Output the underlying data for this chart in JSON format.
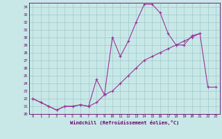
{
  "xlabel": "Windchill (Refroidissement éolien,°C)",
  "background_color": "#c8e8e8",
  "grid_color": "#a0c8c8",
  "line_color": "#993399",
  "spine_color": "#660066",
  "x": [
    0,
    1,
    2,
    3,
    4,
    5,
    6,
    7,
    8,
    9,
    10,
    11,
    12,
    13,
    14,
    15,
    16,
    17,
    18,
    19,
    20,
    21,
    22,
    23
  ],
  "line1": [
    22.0,
    21.5,
    21.0,
    20.5,
    21.0,
    21.0,
    21.2,
    21.0,
    24.5,
    22.5,
    30.0,
    27.5,
    29.5,
    32.0,
    34.3,
    34.3,
    33.2,
    30.5,
    29.0,
    29.0,
    30.2,
    30.5,
    null,
    null
  ],
  "line2": [
    22.0,
    21.5,
    21.0,
    20.5,
    21.0,
    21.0,
    21.2,
    21.0,
    21.5,
    22.5,
    23.0,
    24.0,
    25.0,
    26.0,
    27.0,
    27.5,
    28.0,
    28.5,
    29.0,
    29.5,
    30.0,
    30.5,
    23.5,
    23.5
  ],
  "ylim": [
    20,
    34.5
  ],
  "xlim": [
    -0.5,
    23.5
  ],
  "yticks": [
    20,
    21,
    22,
    23,
    24,
    25,
    26,
    27,
    28,
    29,
    30,
    31,
    32,
    33,
    34
  ],
  "xticks": [
    0,
    1,
    2,
    3,
    4,
    5,
    6,
    7,
    8,
    9,
    10,
    11,
    12,
    13,
    14,
    15,
    16,
    17,
    18,
    19,
    20,
    21,
    22,
    23
  ]
}
